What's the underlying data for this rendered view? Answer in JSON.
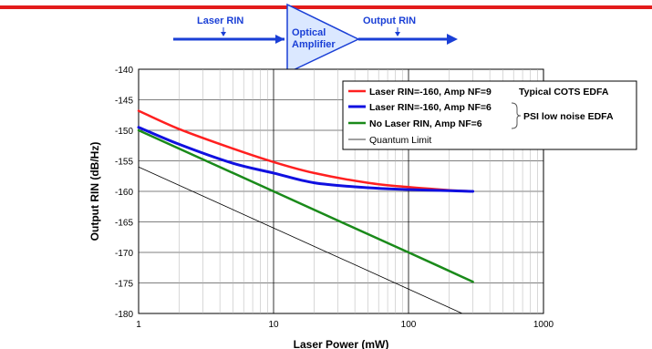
{
  "colors": {
    "top_rule": "#e31b1b",
    "diagram": "#1a3fd6",
    "amp_fill": "#dbe8ff"
  },
  "diagram": {
    "input_label": "Laser RIN",
    "output_label": "Output RIN",
    "amp_label_line1": "Optical",
    "amp_label_line2": "Amplifier"
  },
  "chart_data": {
    "type": "line",
    "title": "",
    "xlabel": "Laser Power (mW)",
    "ylabel": "Output RIN (dB/Hz)",
    "xscale": "log",
    "xlim": [
      1,
      1000
    ],
    "ylim": [
      -180,
      -140
    ],
    "xticks": [
      1,
      10,
      100,
      1000
    ],
    "xtick_labels": [
      "1",
      "10",
      "100",
      "1000"
    ],
    "yticks": [
      -140,
      -145,
      -150,
      -155,
      -160,
      -165,
      -170,
      -175,
      -180
    ],
    "ytick_labels": [
      "-140",
      "-145",
      "-150",
      "-155",
      "-160",
      "-165",
      "-170",
      "-175",
      "-180"
    ],
    "grid": true,
    "legend_position": "top-right",
    "series": [
      {
        "name": "Laser RIN=-160, Amp NF=9",
        "color": "#ff2020",
        "width": 2.5,
        "x": [
          1,
          2,
          5,
          10,
          20,
          50,
          100,
          200,
          300
        ],
        "y": [
          -146.8,
          -149.8,
          -153.0,
          -155.2,
          -157.0,
          -158.6,
          -159.3,
          -159.8,
          -160.0
        ]
      },
      {
        "name": "Laser RIN=-160, Amp NF=6",
        "color": "#1010e0",
        "width": 3,
        "x": [
          1,
          2,
          5,
          10,
          20,
          50,
          100,
          200,
          300
        ],
        "y": [
          -149.5,
          -152.3,
          -155.4,
          -157.0,
          -158.6,
          -159.4,
          -159.7,
          -159.9,
          -160.0
        ]
      },
      {
        "name": "No Laser RIN, Amp NF=6",
        "color": "#1a8a1a",
        "width": 2.5,
        "x": [
          1,
          10,
          50,
          100,
          300
        ],
        "y": [
          -150.0,
          -160.0,
          -167.0,
          -170.0,
          -174.8
        ]
      },
      {
        "name": "Quantum Limit",
        "color": "#000000",
        "width": 0.8,
        "x": [
          1,
          10,
          100,
          250
        ],
        "y": [
          -156.0,
          -166.0,
          -176.0,
          -180.0
        ]
      }
    ],
    "annotations": [
      {
        "text": "Typical COTS EDFA",
        "series": 0
      },
      {
        "text": "PSI low noise EDFA",
        "series": [
          1,
          2
        ]
      }
    ]
  }
}
